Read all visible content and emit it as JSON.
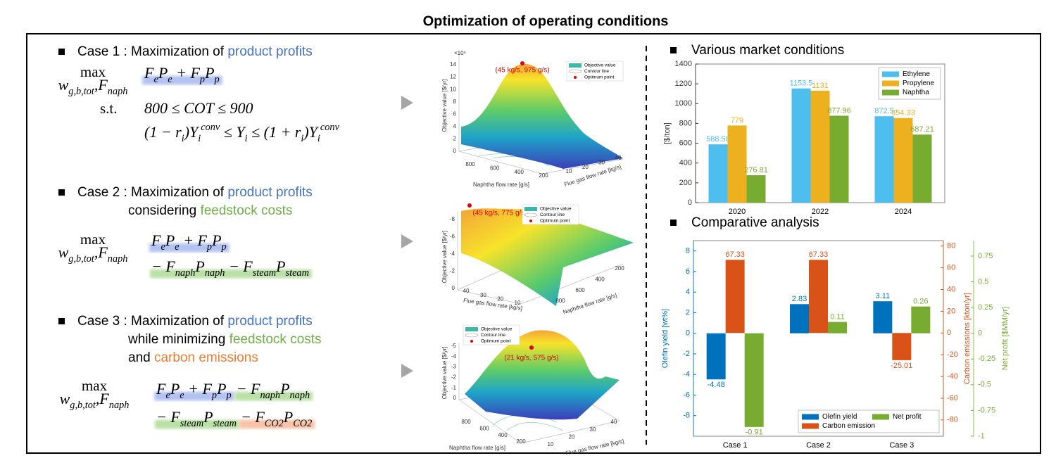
{
  "title": "Optimization of operating conditions",
  "cases": [
    {
      "lines": [
        [
          {
            "text": "Case 1 : Maximization of "
          },
          {
            "text": "product profits",
            "color": "#4472c4"
          }
        ]
      ],
      "max": "max",
      "max_under": "w_{g,b,tot},F_{naph}",
      "equations": [
        [
          {
            "tex": "F_{e}P_{e} + F_{p}P_{p}",
            "highlight": "#9fb3ee"
          }
        ]
      ],
      "st": "s.t.",
      "constraints": [
        "800 ≤ COT ≤ 900",
        "(1 − r_{i})Y_{i}^{conv} ≤ Y_{i} ≤ (1 + r_{i})Y_{i}^{conv}"
      ]
    },
    {
      "lines": [
        [
          {
            "text": "Case 2 : Maximization of "
          },
          {
            "text": "product profits",
            "color": "#4472c4"
          }
        ],
        [
          {
            "text": "considering "
          },
          {
            "text": "feedstock costs",
            "color": "#70ad47"
          }
        ]
      ],
      "max": "max",
      "max_under": "w_{g,b,tot},F_{naph}",
      "equations": [
        [
          {
            "tex": "F_{e}P_{e} + F_{p}P_{p}",
            "highlight": "#9fb3ee"
          }
        ],
        [
          {
            "tex": "− F_{naph}P_{naph} − F_{steam}P_{steam}",
            "highlight": "#a9d98f"
          }
        ]
      ]
    },
    {
      "lines": [
        [
          {
            "text": "Case 3 : Maximization of "
          },
          {
            "text": "product profits",
            "color": "#4472c4"
          }
        ],
        [
          {
            "text": "while minimizing "
          },
          {
            "text": "feedstock costs",
            "color": "#70ad47"
          }
        ],
        [
          {
            "text": "and "
          },
          {
            "text": "carbon emissions",
            "color": "#ed7d31"
          }
        ]
      ],
      "max": "max",
      "max_under": "w_{g,b,tot},F_{naph}",
      "equations": [
        [
          {
            "tex": "F_{e}P_{e} + F_{p}P_{p}",
            "highlight": "#9fb3ee"
          },
          {
            "tex": "− F_{naph}P_{naph}",
            "highlight": "#a9d98f"
          }
        ],
        [
          {
            "tex": "− F_{steam}P_{steam}",
            "highlight": "#a9d98f"
          },
          {
            "tex": "− F_{CO2}P_{CO2}",
            "highlight": "#f6b48f"
          }
        ]
      ]
    }
  ],
  "surface_plots": [
    {
      "optimum": "(45 kg/s, 975 g/s)",
      "z_label": "Objective value [$/yr]",
      "z_multiplier": "×10⁶",
      "zticks": [
        0,
        2,
        4,
        6,
        8,
        10,
        12,
        14
      ],
      "naphtha_label": "Naphtha flow rate [g/s]",
      "naphtha_ticks": [
        800,
        600,
        400,
        200
      ],
      "flue_label": "Flue gas flow rate [kg/s]",
      "flue_ticks": [
        10,
        20,
        30,
        40
      ],
      "legend": [
        "Objective value",
        "Contour line",
        "Optimum point"
      ]
    },
    {
      "optimum": "(45 kg/s, 775 g/s)",
      "z_label": "Objective value [$/yr]",
      "zticks": [
        0,
        -2,
        -4,
        -6,
        -8
      ],
      "naphtha_label": "Naphtha flow rate [g/s]",
      "naphtha_ticks": [
        800,
        600,
        400,
        200
      ],
      "flue_label": "Flue gas flow rate [kg/s]",
      "flue_ticks": [
        40,
        30,
        20,
        10
      ],
      "legend": [
        "Objective value",
        "Contour line",
        "Optimum point"
      ]
    },
    {
      "optimum": "(21 kg/s, 575 g/s)",
      "z_label": "Objective value [$/yr]",
      "zticks": [
        0,
        -1,
        -2,
        -3,
        -4,
        -5
      ],
      "naphtha_label": "Naphtha flow rate [g/s]",
      "naphtha_ticks": [
        800,
        600,
        400,
        200
      ],
      "flue_label": "Flue gas flow rate [kg/s]",
      "flue_ticks": [
        10,
        20,
        30,
        40
      ],
      "legend": [
        "Objective value",
        "Contour line",
        "Optimum point"
      ]
    }
  ],
  "chart_data": [
    {
      "type": "bar",
      "title": "Various market conditions",
      "ylabel": "[$/ton]",
      "categories": [
        "2020",
        "2022",
        "2024"
      ],
      "series": [
        {
          "name": "Ethylene",
          "color": "#4dbeee",
          "values": [
            588.58,
            1153.5,
            872.5
          ]
        },
        {
          "name": "Propylene",
          "color": "#edb120",
          "values": [
            779,
            1131,
            854.33
          ]
        },
        {
          "name": "Naphtha",
          "color": "#77ac30",
          "values": [
            276.81,
            877.96,
            687.21
          ]
        }
      ],
      "ylim": [
        0,
        1400
      ],
      "yticks": [
        0,
        200,
        400,
        600,
        800,
        1000,
        1200,
        1400
      ],
      "legend": "top-right",
      "legend_columns": 1,
      "grid": false
    },
    {
      "type": "bar",
      "title": "Comparative analysis",
      "categories": [
        "Case 1",
        "Case 2",
        "Case 3"
      ],
      "series": [
        {
          "name": "Olefin yield",
          "color": "#0072bd",
          "values": [
            -4.48,
            2.83,
            3.11
          ],
          "axis": "y"
        },
        {
          "name": "Carbon emission",
          "color": "#d95319",
          "values": [
            67.33,
            67.33,
            -25.01
          ],
          "axis": "y2"
        },
        {
          "name": "Net profit",
          "color": "#77ac30",
          "values": [
            -0.91,
            0.11,
            0.26
          ],
          "axis": "y3"
        }
      ],
      "ylabel": "Olefin yield [wt%]",
      "ylim": [
        -10,
        9
      ],
      "yticks": [
        -8,
        -6,
        -4,
        -2,
        0,
        2,
        4,
        6,
        8
      ],
      "y2label": "Carbon emissions [kton/yr]",
      "y2lim": [
        -95,
        85
      ],
      "y2ticks": [
        -80,
        -60,
        -40,
        -20,
        0,
        20,
        40,
        60,
        80
      ],
      "y3label": "Net profit [$MM/yr]",
      "y3lim": [
        -1,
        0.9
      ],
      "y3ticks": [
        -1,
        -0.75,
        -0.5,
        -0.25,
        0,
        0.25,
        0.5,
        0.75
      ],
      "axis_colors": {
        "y": "#0072bd",
        "y2": "#d95319",
        "y3": "#77ac30"
      },
      "legend": "bottom-right",
      "legend_columns": 2,
      "grid": false
    }
  ]
}
